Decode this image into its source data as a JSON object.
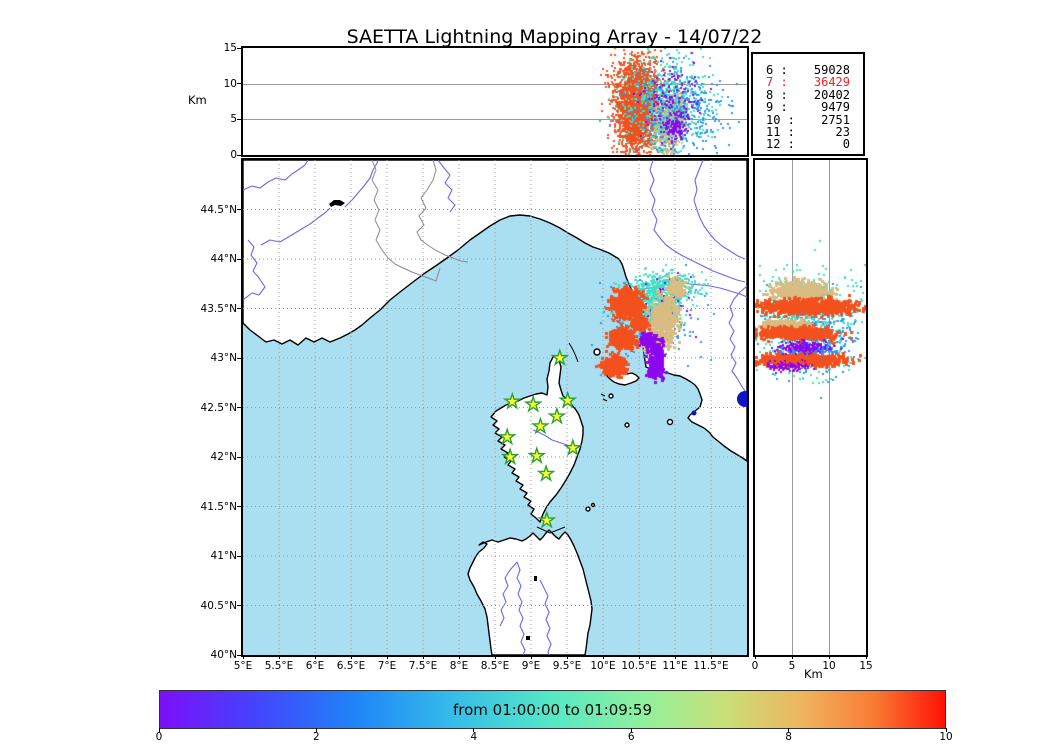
{
  "title": "SAETTA Lightning Mapping Array - 14/07/22",
  "palette": {
    "sea": "#aadff2",
    "land": "#ffffff",
    "coast": "#000000",
    "river": "#6b68ea",
    "boundary": "#8a8a8a",
    "grid": "#999999",
    "navy_marker": "#1113cc",
    "highlight_red": "#f52020",
    "star_fill": "#ffff33",
    "star_stroke": "#2aa32a",
    "scatter": {
      "orange": "#f4501e",
      "tan": "#d9bc82",
      "turquoise": "#3fdfc3",
      "blue": "#2d95f5",
      "purple": "#8d06f0"
    },
    "rainbow_stops": [
      "#7c0ff9 0%",
      "#4443fc 12%",
      "#1f85f8 25%",
      "#35bbea 37%",
      "#55e9c5 50%",
      "#92f09b 62%",
      "#cadf78 72%",
      "#eeb45e 82%",
      "#fa7b33 91%",
      "#fd1205 100%"
    ]
  },
  "axes": {
    "top_yticks": [
      "15",
      "10",
      "5",
      "0"
    ],
    "lat_ticks": [
      "44.5°N",
      "44°N",
      "43.5°N",
      "43°N",
      "42.5°N",
      "42°N",
      "41.5°N",
      "41°N",
      "40.5°N",
      "40°N"
    ],
    "lon_ticks": [
      "5°E",
      "5.5°E",
      "6°E",
      "6.5°E",
      "7°E",
      "7.5°E",
      "8°E",
      "8.5°E",
      "9°E",
      "9.5°E",
      "10°E",
      "10.5°E",
      "11°E",
      "11.5°E"
    ],
    "right_xticks": [
      "0",
      "5",
      "10",
      "15"
    ],
    "cbar_ticks": [
      "0",
      "2",
      "4",
      "6",
      "8",
      "10"
    ]
  },
  "colorbar": {
    "label": "from 01:00:00 to 01:09:59",
    "range": [
      0,
      10
    ],
    "colormap": "rainbow"
  },
  "chart_data": [
    {
      "type": "scatter",
      "name": "altitude-vs-longitude",
      "ylabel": "Km",
      "xlim": [
        5,
        12
      ],
      "ylim": [
        0,
        15
      ],
      "grid_y": [
        5,
        10
      ],
      "clusters": [
        {
          "color": "orange",
          "x": 10.46,
          "y": 7.0,
          "rx": 0.28,
          "ry": 6.2,
          "n": 2200,
          "s": 2
        },
        {
          "color": "orange",
          "x": 10.46,
          "y": 7.0,
          "rx": 0.4,
          "ry": 6.8,
          "n": 450,
          "s": 2
        },
        {
          "color": "tan",
          "x": 10.88,
          "y": 4.3,
          "rx": 0.21,
          "ry": 3.6,
          "n": 650,
          "s": 2
        },
        {
          "color": "tan",
          "x": 11.0,
          "y": 6.6,
          "rx": 0.15,
          "ry": 2.5,
          "n": 200,
          "s": 2
        },
        {
          "color": "turquoise",
          "x": 10.88,
          "y": 7.3,
          "rx": 0.58,
          "ry": 6.7,
          "n": 650,
          "s": 2
        },
        {
          "color": "blue",
          "x": 11.07,
          "y": 6.3,
          "rx": 0.68,
          "ry": 6.3,
          "n": 330,
          "s": 2
        },
        {
          "color": "purple",
          "x": 10.94,
          "y": 8.3,
          "rx": 0.46,
          "ry": 4.2,
          "n": 130,
          "s": 2
        },
        {
          "color": "purple",
          "x": 10.99,
          "y": 4.2,
          "rx": 0.17,
          "ry": 2.0,
          "n": 110,
          "s": 2
        }
      ]
    },
    {
      "type": "scatter",
      "name": "map-lightning-sources",
      "xlim": [
        5,
        12
      ],
      "ylim": [
        40,
        45
      ],
      "stations": [
        [
          9.4,
          43.0
        ],
        [
          8.74,
          42.56
        ],
        [
          9.03,
          42.53
        ],
        [
          9.51,
          42.57
        ],
        [
          9.36,
          42.41
        ],
        [
          9.13,
          42.31
        ],
        [
          8.67,
          42.2
        ],
        [
          9.58,
          42.09
        ],
        [
          8.71,
          42.0
        ],
        [
          9.08,
          42.01
        ],
        [
          9.21,
          41.83
        ],
        [
          9.22,
          41.36
        ]
      ],
      "clusters": [
        {
          "color": "blue",
          "x": 10.65,
          "y": 43.38,
          "rx": 0.67,
          "ry": 0.42,
          "n": 260,
          "s": 2
        },
        {
          "color": "turquoise",
          "x": 10.63,
          "y": 43.54,
          "rx": 0.44,
          "ry": 0.25,
          "n": 800,
          "s": 2
        },
        {
          "color": "turquoise",
          "x": 10.93,
          "y": 43.75,
          "rx": 0.39,
          "ry": 0.15,
          "n": 220,
          "s": 2
        },
        {
          "color": "purple",
          "x": 10.81,
          "y": 43.51,
          "rx": 0.42,
          "ry": 0.3,
          "n": 60,
          "s": 2
        },
        {
          "color": "tan",
          "x": 10.83,
          "y": 43.43,
          "rx": 0.19,
          "ry": 0.2,
          "n": 450,
          "s": 3
        },
        {
          "color": "tan",
          "x": 10.72,
          "y": 43.18,
          "rx": 0.17,
          "ry": 0.11,
          "n": 260,
          "s": 3
        },
        {
          "color": "tan",
          "x": 11.01,
          "y": 43.72,
          "rx": 0.11,
          "ry": 0.08,
          "n": 120,
          "s": 3
        },
        {
          "color": "purple",
          "x": 10.61,
          "y": 43.2,
          "rx": 0.14,
          "ry": 0.07,
          "n": 90,
          "s": 3
        },
        {
          "color": "purple",
          "x": 10.72,
          "y": 42.99,
          "rx": 0.1,
          "ry": 0.18,
          "n": 320,
          "s": 3
        },
        {
          "color": "orange",
          "x": 10.31,
          "y": 43.56,
          "rx": 0.21,
          "ry": 0.14,
          "n": 550,
          "s": 3
        },
        {
          "color": "orange",
          "x": 10.25,
          "y": 43.21,
          "rx": 0.17,
          "ry": 0.1,
          "n": 380,
          "s": 3
        },
        {
          "color": "orange",
          "x": 10.13,
          "y": 42.93,
          "rx": 0.15,
          "ry": 0.1,
          "n": 380,
          "s": 3
        },
        {
          "color": "orange",
          "x": 10.49,
          "y": 43.35,
          "rx": 0.1,
          "ry": 0.07,
          "n": 130,
          "s": 3
        }
      ]
    },
    {
      "type": "scatter",
      "name": "altitude-vs-latitude",
      "xlabel": "Km",
      "xlim": [
        0,
        15
      ],
      "ylim": [
        40,
        45
      ],
      "grid_x": [
        5,
        10
      ],
      "clusters": [
        {
          "color": "turquoise",
          "x": 6.8,
          "y": 43.38,
          "rx": 6.8,
          "ry": 0.49,
          "n": 700,
          "s": 2
        },
        {
          "color": "blue",
          "x": 7.4,
          "y": 43.26,
          "rx": 6.5,
          "ry": 0.42,
          "n": 300,
          "s": 2
        },
        {
          "color": "tan",
          "x": 6.1,
          "y": 43.69,
          "rx": 3.8,
          "ry": 0.1,
          "n": 500,
          "s": 3
        },
        {
          "color": "tan",
          "x": 3.8,
          "y": 43.34,
          "rx": 3.0,
          "ry": 0.06,
          "n": 280,
          "s": 3
        },
        {
          "color": "orange",
          "x": 7.0,
          "y": 43.53,
          "rx": 6.1,
          "ry": 0.07,
          "n": 900,
          "s": 3
        },
        {
          "color": "orange",
          "x": 5.4,
          "y": 43.26,
          "rx": 5.0,
          "ry": 0.06,
          "n": 600,
          "s": 3
        },
        {
          "color": "orange",
          "x": 6.1,
          "y": 43.0,
          "rx": 5.7,
          "ry": 0.06,
          "n": 700,
          "s": 3
        },
        {
          "color": "blue",
          "x": 7.0,
          "y": 43.1,
          "rx": 3.5,
          "ry": 0.05,
          "n": 140,
          "s": 2
        },
        {
          "color": "purple",
          "x": 6.4,
          "y": 43.12,
          "rx": 3.5,
          "ry": 0.06,
          "n": 160,
          "s": 2
        },
        {
          "color": "purple",
          "x": 4.3,
          "y": 42.92,
          "rx": 2.7,
          "ry": 0.05,
          "n": 90,
          "s": 2
        }
      ]
    },
    {
      "type": "table",
      "name": "source-counts-by-station-number",
      "rows": [
        {
          "n": 6,
          "count": 59028,
          "highlight": false
        },
        {
          "n": 7,
          "count": 36429,
          "highlight": true
        },
        {
          "n": 8,
          "count": 20402,
          "highlight": false
        },
        {
          "n": 9,
          "count": 9479,
          "highlight": false
        },
        {
          "n": 10,
          "count": 2751,
          "highlight": false
        },
        {
          "n": 11,
          "count": 23,
          "highlight": false
        },
        {
          "n": 12,
          "count": 0,
          "highlight": false
        }
      ]
    }
  ]
}
